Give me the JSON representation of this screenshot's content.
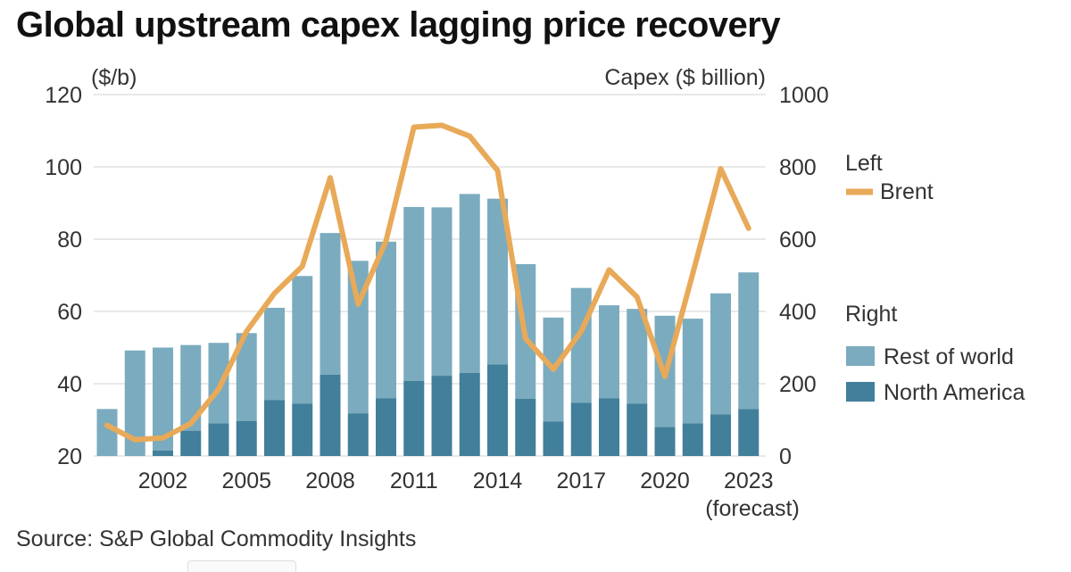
{
  "title": "Global upstream capex lagging price recovery",
  "source": "Source: S&P Global Commodity Insights",
  "colors": {
    "brent": "#E8A958",
    "rest_of_world": "#7BABBE",
    "north_america": "#417F9A",
    "grid": "#d9d9d9"
  },
  "chart_data": {
    "type": "bar",
    "title": "Global upstream capex lagging price recovery",
    "left_axis": {
      "label": "($/b)",
      "ylim": [
        20,
        120
      ],
      "ticks": [
        20,
        40,
        60,
        80,
        100,
        120
      ]
    },
    "right_axis": {
      "label": "Capex ($ billion)",
      "ylim": [
        0,
        1000
      ],
      "ticks": [
        0,
        200,
        400,
        600,
        800,
        1000
      ]
    },
    "x": [
      2000,
      2001,
      2002,
      2003,
      2004,
      2005,
      2006,
      2007,
      2008,
      2009,
      2010,
      2011,
      2012,
      2013,
      2014,
      2015,
      2016,
      2017,
      2018,
      2019,
      2020,
      2021,
      2022,
      2023
    ],
    "x_tick_labels": [
      {
        "x": 2002,
        "label": "2002"
      },
      {
        "x": 2005,
        "label": "2005"
      },
      {
        "x": 2008,
        "label": "2008"
      },
      {
        "x": 2011,
        "label": "2011"
      },
      {
        "x": 2014,
        "label": "2014"
      },
      {
        "x": 2017,
        "label": "2017"
      },
      {
        "x": 2020,
        "label": "2020"
      },
      {
        "x": 2023,
        "label": "2023"
      }
    ],
    "forecast_note": "(forecast)",
    "grid": true,
    "legend": {
      "left_header": "Left",
      "right_header": "Right",
      "brent_label": "Brent",
      "rest_of_world_label": "Rest of world",
      "north_america_label": "North America",
      "placement": "right"
    },
    "series": [
      {
        "name": "North America",
        "axis": "right",
        "stack": "capex",
        "values": [
          0,
          0,
          15,
          70,
          90,
          97,
          155,
          145,
          225,
          118,
          160,
          208,
          222,
          230,
          253,
          158,
          95,
          147,
          160,
          145,
          80,
          90,
          115,
          130
        ]
      },
      {
        "name": "Rest of world",
        "axis": "right",
        "stack": "capex",
        "values": [
          130,
          292,
          285,
          237,
          223,
          243,
          255,
          353,
          392,
          422,
          433,
          481,
          466,
          495,
          459,
          373,
          288,
          318,
          257,
          262,
          308,
          290,
          335,
          378
        ]
      },
      {
        "name": "Brent",
        "axis": "left",
        "type": "line",
        "values": [
          28.5,
          24.5,
          25,
          29,
          38.5,
          54.5,
          65,
          72.5,
          97,
          62,
          79.5,
          111,
          111.5,
          108.5,
          99,
          52.5,
          44,
          54.5,
          71.5,
          64,
          42,
          70.5,
          99.5,
          83
        ]
      }
    ]
  }
}
